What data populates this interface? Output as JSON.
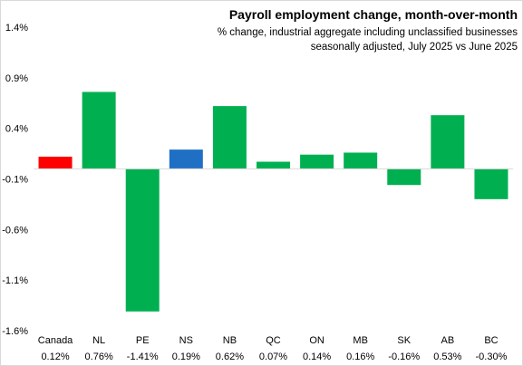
{
  "chart_data": {
    "type": "bar",
    "title": "Payroll employment change, month-over-month",
    "subtitle_lines": [
      "% change, industrial aggregate  including unclassified businesses",
      "seasonally adjusted, July 2025 vs June 2025"
    ],
    "categories": [
      "Canada",
      "NL",
      "PE",
      "NS",
      "NB",
      "QC",
      "ON",
      "MB",
      "SK",
      "AB",
      "BC"
    ],
    "values": [
      0.12,
      0.76,
      -1.41,
      0.19,
      0.62,
      0.07,
      0.14,
      0.16,
      -0.16,
      0.53,
      -0.3
    ],
    "value_labels": [
      "0.12%",
      "0.76%",
      "-1.41%",
      "0.19%",
      "0.62%",
      "0.07%",
      "0.14%",
      "0.16%",
      "-0.16%",
      "0.53%",
      "-0.30%"
    ],
    "yticks": [
      1.4,
      0.9,
      0.4,
      -0.1,
      -0.6,
      -1.1,
      -1.6
    ],
    "ytick_labels": [
      "1.4%",
      "0.9%",
      "0.4%",
      "-0.1%",
      "-0.6%",
      "-1.1%",
      "-1.6%"
    ],
    "ylim": [
      -1.6,
      1.4
    ],
    "grid": false,
    "legend": "none",
    "colors": {
      "canada": "#ff0000",
      "nova_scotia": "#1f6fc5",
      "provinces": "#00b050",
      "axis": "#d9d9d9"
    },
    "bar_colors": [
      "#ff0000",
      "#00b050",
      "#00b050",
      "#1f6fc5",
      "#00b050",
      "#00b050",
      "#00b050",
      "#00b050",
      "#00b050",
      "#00b050",
      "#00b050"
    ]
  }
}
